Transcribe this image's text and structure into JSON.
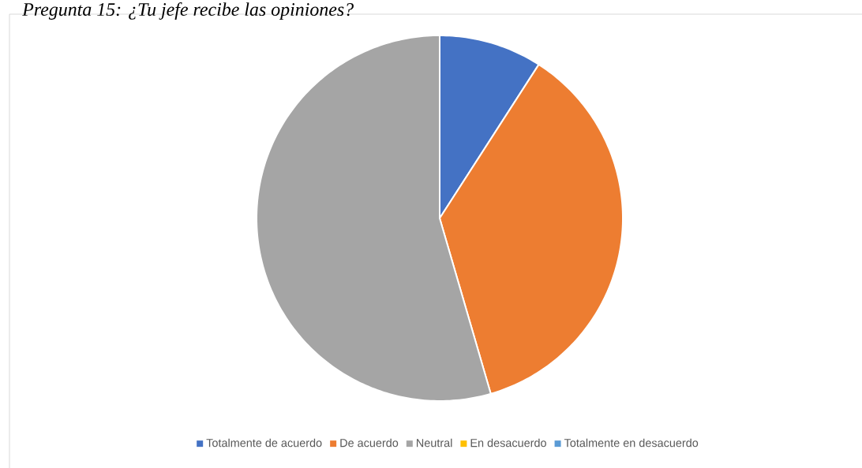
{
  "chart_data": {
    "type": "pie",
    "title": "Pregunta 15: ¿Tu jefe recibe las opiniones?",
    "categories": [
      "Totalmente de acuerdo",
      "De acuerdo",
      "Neutral",
      "En desacuerdo",
      "Totalmente en desacuerdo"
    ],
    "values": [
      9.1,
      36.4,
      54.5,
      0,
      0
    ],
    "colors": [
      "#4472c4",
      "#ed7d31",
      "#a5a5a5",
      "#ffc000",
      "#5b9bd5"
    ],
    "legend": "bottom"
  }
}
